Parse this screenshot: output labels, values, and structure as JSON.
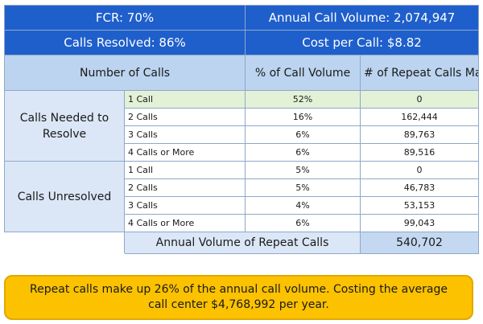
{
  "kpis": {
    "fcr": "FCR: 70%",
    "annual_volume": "Annual Call Volume: 2,074,947",
    "calls_resolved": "Calls Resolved: 86%",
    "cost_per_call": "Cost per Call: $8.82"
  },
  "headers": {
    "number_of_calls": "Number of Calls",
    "pct_volume": "% of Call Volume",
    "repeat_calls": "# of Repeat Calls Made"
  },
  "groups": [
    {
      "label": "Calls Needed to Resolve",
      "rows": [
        {
          "calls": "1 Call",
          "pct": "52%",
          "repeat": "0"
        },
        {
          "calls": "2 Calls",
          "pct": "16%",
          "repeat": "162,444"
        },
        {
          "calls": "3 Calls",
          "pct": "6%",
          "repeat": "89,763"
        },
        {
          "calls": "4 Calls or More",
          "pct": "6%",
          "repeat": "89,516"
        }
      ]
    },
    {
      "label": "Calls Unresolved",
      "rows": [
        {
          "calls": "1 Call",
          "pct": "5%",
          "repeat": "0"
        },
        {
          "calls": "2 Calls",
          "pct": "5%",
          "repeat": "46,783"
        },
        {
          "calls": "3 Calls",
          "pct": "4%",
          "repeat": "53,153"
        },
        {
          "calls": "4 Calls or More",
          "pct": "6%",
          "repeat": "99,043"
        }
      ]
    }
  ],
  "total": {
    "label": "Annual Volume of Repeat Calls",
    "value": "540,702"
  },
  "note": "Repeat calls make up 26% of the annual call volume. Costing the average call center $4,768,992 per year.",
  "colors": {
    "kpi_bg": "#1f5fcc",
    "header_bg": "#bcd4ef",
    "highlight_row": "#e3f1d6",
    "note_bg": "#fcc200"
  }
}
